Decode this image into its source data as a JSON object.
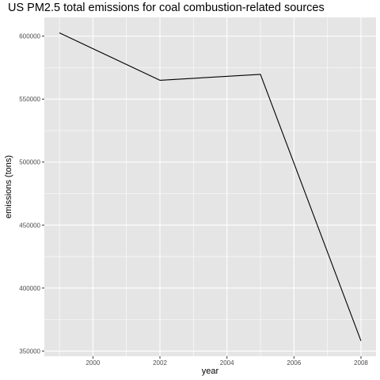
{
  "chart_data": {
    "type": "line",
    "title": "US PM2.5 total emissions for coal combustion-related sources",
    "xlabel": "year",
    "ylabel": "emissions (tons)",
    "x": [
      1999,
      2002,
      2005,
      2008
    ],
    "values": [
      602624,
      564940,
      569654,
      358084
    ],
    "xlim": [
      1998.55,
      2008.45
    ],
    "ylim": [
      345857,
      614852
    ],
    "xticks": [
      2000,
      2002,
      2004,
      2006,
      2008
    ],
    "xtick_labels": [
      "2000",
      "2002",
      "2004",
      "2006",
      "2008"
    ],
    "yticks": [
      350000,
      400000,
      450000,
      500000,
      550000,
      600000
    ],
    "ytick_labels": [
      "350000",
      "400000",
      "450000",
      "500000",
      "550000",
      "600000"
    ],
    "grid": true,
    "colors": {
      "panel": "#e5e5e5",
      "grid": "#ffffff",
      "line": "#000000"
    }
  }
}
